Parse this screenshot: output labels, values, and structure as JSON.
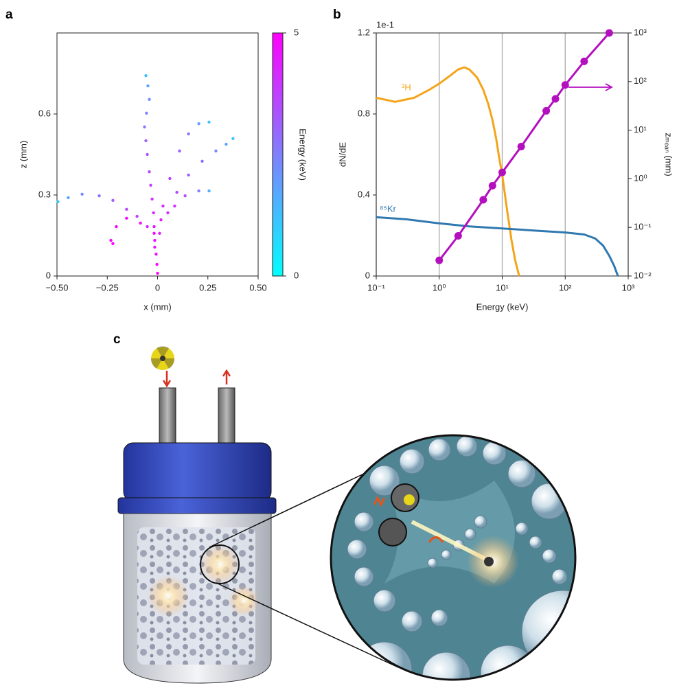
{
  "chart_data": [
    {
      "type": "scatter",
      "panel": "a",
      "xlabel": "x (mm)",
      "ylabel": "z (mm)",
      "xlim": [
        -0.5,
        0.5
      ],
      "xticks": [
        {
          "value": -0.5,
          "label": "−0.50"
        },
        {
          "value": -0.25,
          "label": "−0.25"
        },
        0,
        {
          "value": 0.25,
          "label": "0.25"
        },
        {
          "value": 0.5,
          "label": "0.50"
        }
      ],
      "ylim": [
        0,
        0.9
      ],
      "yticks": [
        0,
        0.3,
        0.6
      ],
      "colorbar_label": "Energy (keV)",
      "clim": [
        0,
        5
      ],
      "cticks": [
        0,
        5
      ],
      "colormap": [
        "#00ffff",
        "#ff00ff"
      ],
      "x": [
        0,
        -0.003,
        -0.007,
        -0.014,
        -0.017,
        -0.02,
        -0.027,
        -0.034,
        -0.041,
        -0.051,
        -0.058,
        -0.065,
        -0.055,
        -0.041,
        -0.048,
        -0.058,
        -0.014,
        -0.051,
        -0.102,
        -0.154,
        -0.222,
        -0.29,
        -0.375,
        -0.444,
        -0.495,
        0.01,
        0.051,
        0.096,
        0.154,
        0.222,
        0.29,
        0.341,
        0.375,
        0.027,
        0.061,
        0.109,
        0.154,
        0.205,
        0.256,
        -0.017,
        -0.085,
        -0.154,
        -0.205,
        -0.232,
        -0.222,
        0.017,
        0.085,
        0.137,
        0.205,
        0.256
      ],
      "values": [
        0.01,
        0.043,
        0.081,
        0.132,
        0.183,
        0.234,
        0.285,
        0.336,
        0.386,
        0.45,
        0.501,
        0.552,
        0.603,
        0.654,
        0.704,
        0.742,
        0.107,
        0.183,
        0.221,
        0.247,
        0.28,
        0.297,
        0.303,
        0.29,
        0.275,
        0.158,
        0.234,
        0.31,
        0.374,
        0.425,
        0.463,
        0.488,
        0.509,
        0.259,
        0.361,
        0.463,
        0.526,
        0.564,
        0.57,
        0.158,
        0.196,
        0.214,
        0.183,
        0.132,
        0.12,
        0.208,
        0.259,
        0.297,
        0.315,
        0.315
      ],
      "energy": [
        5,
        4.9,
        4.7,
        4.6,
        4.4,
        4.2,
        4,
        3.8,
        3.6,
        3.4,
        3.1,
        2.8,
        2.5,
        2.2,
        1.8,
        1.3,
        4.6,
        4.2,
        3.8,
        3.6,
        3.2,
        2.8,
        2.3,
        1.8,
        1,
        4.4,
        4,
        3.6,
        3.2,
        2.8,
        2.3,
        1.8,
        1.2,
        4.2,
        3.7,
        3.2,
        2.6,
        1.8,
        1.2,
        4.8,
        4.9,
        4.8,
        4.9,
        5,
        5,
        4.5,
        4,
        3.5,
        2.5,
        1.5
      ]
    },
    {
      "type": "line",
      "panel": "b",
      "xlabel": "Energy (keV)",
      "ylabel": "dN/dE",
      "y_offset_label": "1e-1",
      "y2label": "zₘₑₐₙ (mm)",
      "xscale": "log",
      "xlim": [
        0.1,
        1000
      ],
      "xticks": [
        {
          "value": 0.1,
          "label": "10⁻¹"
        },
        {
          "value": 1,
          "label": "10⁰"
        },
        {
          "value": 10,
          "label": "10¹"
        },
        {
          "value": 100,
          "label": "10²"
        },
        {
          "value": 1000,
          "label": "10³"
        }
      ],
      "ylim": [
        0,
        1.2
      ],
      "yticks": [
        0,
        0.4,
        0.8,
        1.2
      ],
      "y2scale": "log",
      "y2lim": [
        0.01,
        1000
      ],
      "y2ticks": [
        {
          "value": 0.01,
          "label": "10⁻²"
        },
        {
          "value": 0.1,
          "label": "10⁻¹"
        },
        {
          "value": 1,
          "label": "10⁰"
        },
        {
          "value": 10,
          "label": "10¹"
        },
        {
          "value": 100,
          "label": "10²"
        },
        {
          "value": 1000,
          "label": "10³"
        }
      ],
      "grid": "x",
      "series": [
        {
          "name": "³H",
          "color": "#f5a418",
          "x": [
            0.1,
            0.2,
            0.4,
            0.7,
            1,
            1.5,
            2,
            2.5,
            3,
            4,
            5,
            6,
            7,
            8,
            9,
            10,
            12,
            14,
            16,
            18.6
          ],
          "values": [
            0.88,
            0.86,
            0.88,
            0.92,
            0.95,
            0.99,
            1.02,
            1.03,
            1.02,
            0.98,
            0.92,
            0.85,
            0.77,
            0.68,
            0.58,
            0.5,
            0.32,
            0.18,
            0.08,
            0
          ]
        },
        {
          "name": "⁸⁵Kr",
          "color": "#2f78b0",
          "x": [
            0.1,
            0.3,
            1,
            3,
            10,
            30,
            100,
            200,
            300,
            400,
            500,
            600,
            687
          ],
          "values": [
            0.29,
            0.28,
            0.26,
            0.245,
            0.235,
            0.225,
            0.215,
            0.205,
            0.185,
            0.15,
            0.1,
            0.05,
            0
          ]
        },
        {
          "color": "#b40fbf",
          "axis": "y2",
          "marker": "o",
          "x": [
            1,
            2,
            5,
            7,
            10,
            20,
            50,
            70,
            100,
            200,
            500
          ],
          "values": [
            0.021,
            0.067,
            0.37,
            0.72,
            1.35,
            4.6,
            25,
            44,
            85,
            260,
            1000
          ]
        }
      ]
    }
  ],
  "illustration": {
    "panel": "c"
  }
}
